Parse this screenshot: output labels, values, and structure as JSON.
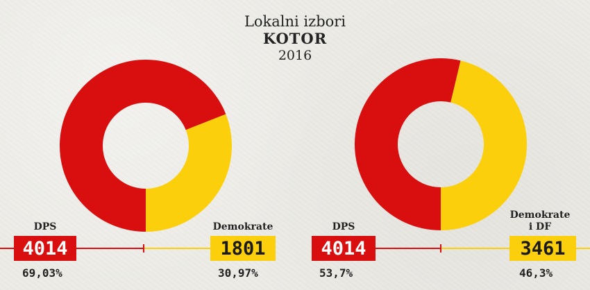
{
  "header": {
    "line1": "Lokalni izbori",
    "line2": "KOTOR",
    "line3": "2016"
  },
  "colors": {
    "red": "#d90f0f",
    "yellow": "#fbcf0b"
  },
  "chart_data": [
    {
      "type": "pie",
      "series": [
        {
          "name": "DPS",
          "value": 4014,
          "percent": 69.03,
          "label": "4014",
          "pct_label": "69,03%"
        },
        {
          "name": "Demokrate",
          "value": 1801,
          "percent": 30.97,
          "label": "1801",
          "pct_label": "30,97%"
        }
      ]
    },
    {
      "type": "pie",
      "series": [
        {
          "name": "DPS",
          "value": 4014,
          "percent": 53.7,
          "label": "4014",
          "pct_label": "53,7%"
        },
        {
          "name": "Demokrate i DF",
          "name_line1": "Demokrate",
          "name_line2": "i DF",
          "value": 3461,
          "percent": 46.3,
          "label": "3461",
          "pct_label": "46,3%"
        }
      ]
    }
  ]
}
